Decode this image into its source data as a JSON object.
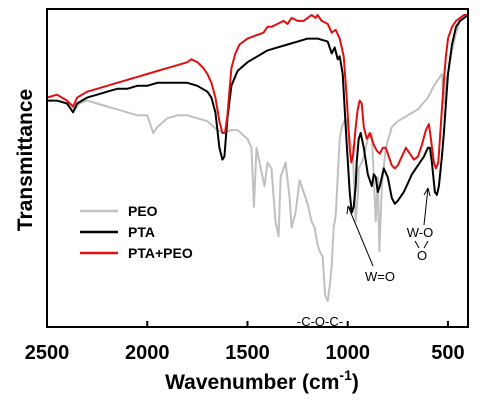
{
  "chart_data": {
    "type": "line",
    "xlabel": "Wavenumber (cm",
    "xlabel_sup": "-1",
    "xlabel_close": ")",
    "ylabel": "Transmittance",
    "xlim": [
      2500,
      400
    ],
    "x_reversed": true,
    "xticks": [
      2500,
      2000,
      1500,
      1000,
      500
    ],
    "xtick_labels": [
      "2500",
      "2000",
      "1500",
      "1000",
      "500"
    ],
    "ylim": [
      0,
      100
    ],
    "y_ticks_shown": false,
    "grid": false,
    "legend_position": "lower-left",
    "series": [
      {
        "name": "PEO",
        "color": "#c0c0c0",
        "points": [
          [
            2500,
            72
          ],
          [
            2450,
            73
          ],
          [
            2400,
            71
          ],
          [
            2360,
            68
          ],
          [
            2340,
            70
          ],
          [
            2300,
            71
          ],
          [
            2250,
            70
          ],
          [
            2200,
            69
          ],
          [
            2150,
            68
          ],
          [
            2100,
            67
          ],
          [
            2050,
            66
          ],
          [
            2000,
            66
          ],
          [
            1970,
            60
          ],
          [
            1950,
            62
          ],
          [
            1900,
            65
          ],
          [
            1850,
            66
          ],
          [
            1800,
            66
          ],
          [
            1750,
            65
          ],
          [
            1700,
            64
          ],
          [
            1650,
            61
          ],
          [
            1620,
            60
          ],
          [
            1580,
            61
          ],
          [
            1550,
            61
          ],
          [
            1500,
            58
          ],
          [
            1480,
            55
          ],
          [
            1468,
            35
          ],
          [
            1455,
            55
          ],
          [
            1440,
            50
          ],
          [
            1415,
            42
          ],
          [
            1400,
            50
          ],
          [
            1380,
            48
          ],
          [
            1360,
            30
          ],
          [
            1345,
            25
          ],
          [
            1335,
            45
          ],
          [
            1310,
            50
          ],
          [
            1290,
            38
          ],
          [
            1280,
            28
          ],
          [
            1260,
            33
          ],
          [
            1240,
            44
          ],
          [
            1220,
            40
          ],
          [
            1200,
            36
          ],
          [
            1180,
            30
          ],
          [
            1165,
            28
          ],
          [
            1150,
            22
          ],
          [
            1140,
            20
          ],
          [
            1125,
            18
          ],
          [
            1113,
            5
          ],
          [
            1100,
            3
          ],
          [
            1090,
            8
          ],
          [
            1080,
            15
          ],
          [
            1070,
            28
          ],
          [
            1060,
            32
          ],
          [
            1050,
            45
          ],
          [
            1040,
            58
          ],
          [
            1030,
            62
          ],
          [
            1010,
            65
          ],
          [
            990,
            58
          ],
          [
            975,
            54
          ],
          [
            960,
            30
          ],
          [
            948,
            40
          ],
          [
            945,
            48
          ],
          [
            930,
            50
          ],
          [
            920,
            52
          ],
          [
            900,
            58
          ],
          [
            880,
            60
          ],
          [
            860,
            30
          ],
          [
            850,
            45
          ],
          [
            842,
            20
          ],
          [
            830,
            42
          ],
          [
            810,
            55
          ],
          [
            780,
            62
          ],
          [
            750,
            64
          ],
          [
            700,
            66
          ],
          [
            650,
            68
          ],
          [
            600,
            72
          ],
          [
            570,
            76
          ],
          [
            550,
            78
          ],
          [
            530,
            80
          ],
          [
            520,
            70
          ],
          [
            512,
            78
          ],
          [
            500,
            80
          ],
          [
            480,
            88
          ],
          [
            460,
            94
          ],
          [
            440,
            98
          ],
          [
            420,
            99
          ],
          [
            400,
            100
          ]
        ]
      },
      {
        "name": "PTA",
        "color": "#000000",
        "points": [
          [
            2500,
            71
          ],
          [
            2450,
            71
          ],
          [
            2400,
            70
          ],
          [
            2370,
            67
          ],
          [
            2350,
            70
          ],
          [
            2300,
            72
          ],
          [
            2250,
            73
          ],
          [
            2200,
            74
          ],
          [
            2150,
            75
          ],
          [
            2100,
            75
          ],
          [
            2050,
            76
          ],
          [
            2000,
            76
          ],
          [
            1950,
            77
          ],
          [
            1900,
            77
          ],
          [
            1850,
            77
          ],
          [
            1800,
            77
          ],
          [
            1750,
            76
          ],
          [
            1700,
            74
          ],
          [
            1680,
            72
          ],
          [
            1660,
            67
          ],
          [
            1640,
            55
          ],
          [
            1625,
            51
          ],
          [
            1615,
            52
          ],
          [
            1600,
            65
          ],
          [
            1580,
            76
          ],
          [
            1550,
            81
          ],
          [
            1500,
            84
          ],
          [
            1450,
            86
          ],
          [
            1400,
            88
          ],
          [
            1350,
            89
          ],
          [
            1300,
            90
          ],
          [
            1250,
            91
          ],
          [
            1200,
            92
          ],
          [
            1150,
            92
          ],
          [
            1100,
            91
          ],
          [
            1080,
            87
          ],
          [
            1065,
            89
          ],
          [
            1050,
            85
          ],
          [
            1040,
            86
          ],
          [
            1025,
            80
          ],
          [
            1010,
            62
          ],
          [
            990,
            40
          ],
          [
            980,
            33
          ],
          [
            970,
            35
          ],
          [
            960,
            42
          ],
          [
            955,
            50
          ],
          [
            945,
            58
          ],
          [
            935,
            60
          ],
          [
            920,
            55
          ],
          [
            900,
            46
          ],
          [
            880,
            42
          ],
          [
            870,
            46
          ],
          [
            860,
            45
          ],
          [
            850,
            40
          ],
          [
            840,
            42
          ],
          [
            830,
            45
          ],
          [
            820,
            48
          ],
          [
            800,
            45
          ],
          [
            780,
            38
          ],
          [
            765,
            36
          ],
          [
            750,
            37
          ],
          [
            720,
            40
          ],
          [
            700,
            43
          ],
          [
            680,
            46
          ],
          [
            660,
            48
          ],
          [
            640,
            50
          ],
          [
            620,
            52
          ],
          [
            600,
            55
          ],
          [
            590,
            55
          ],
          [
            580,
            50
          ],
          [
            565,
            40
          ],
          [
            555,
            39
          ],
          [
            545,
            42
          ],
          [
            530,
            52
          ],
          [
            520,
            60
          ],
          [
            510,
            70
          ],
          [
            500,
            80
          ],
          [
            480,
            90
          ],
          [
            460,
            96
          ],
          [
            440,
            98
          ],
          [
            420,
            99
          ],
          [
            400,
            100
          ]
        ]
      },
      {
        "name": "PTA+PEO",
        "color": "#e01010",
        "points": [
          [
            2500,
            72
          ],
          [
            2450,
            73
          ],
          [
            2400,
            71
          ],
          [
            2370,
            69
          ],
          [
            2350,
            72
          ],
          [
            2300,
            74
          ],
          [
            2250,
            75
          ],
          [
            2200,
            76
          ],
          [
            2150,
            77
          ],
          [
            2100,
            78
          ],
          [
            2050,
            79
          ],
          [
            2000,
            80
          ],
          [
            1950,
            81
          ],
          [
            1900,
            82
          ],
          [
            1850,
            83
          ],
          [
            1800,
            84
          ],
          [
            1780,
            85
          ],
          [
            1750,
            84
          ],
          [
            1720,
            82
          ],
          [
            1700,
            80
          ],
          [
            1680,
            77
          ],
          [
            1660,
            72
          ],
          [
            1640,
            64
          ],
          [
            1625,
            60
          ],
          [
            1612,
            60
          ],
          [
            1600,
            66
          ],
          [
            1590,
            74
          ],
          [
            1580,
            82
          ],
          [
            1560,
            87
          ],
          [
            1540,
            90
          ],
          [
            1500,
            92
          ],
          [
            1460,
            93
          ],
          [
            1420,
            94
          ],
          [
            1400,
            96
          ],
          [
            1380,
            96
          ],
          [
            1350,
            97
          ],
          [
            1320,
            98
          ],
          [
            1300,
            97
          ],
          [
            1280,
            99
          ],
          [
            1250,
            98
          ],
          [
            1220,
            98
          ],
          [
            1200,
            99
          ],
          [
            1180,
            100
          ],
          [
            1160,
            99
          ],
          [
            1150,
            100
          ],
          [
            1130,
            98
          ],
          [
            1100,
            97
          ],
          [
            1080,
            94
          ],
          [
            1060,
            95
          ],
          [
            1040,
            92
          ],
          [
            1020,
            86
          ],
          [
            1005,
            72
          ],
          [
            990,
            55
          ],
          [
            982,
            50
          ],
          [
            972,
            53
          ],
          [
            960,
            62
          ],
          [
            950,
            68
          ],
          [
            940,
            71
          ],
          [
            930,
            70
          ],
          [
            920,
            62
          ],
          [
            905,
            58
          ],
          [
            890,
            60
          ],
          [
            870,
            56
          ],
          [
            855,
            54
          ],
          [
            840,
            53
          ],
          [
            825,
            55
          ],
          [
            810,
            55
          ],
          [
            795,
            52
          ],
          [
            780,
            49
          ],
          [
            765,
            48
          ],
          [
            750,
            49
          ],
          [
            730,
            52
          ],
          [
            710,
            55
          ],
          [
            690,
            53
          ],
          [
            670,
            51
          ],
          [
            650,
            52
          ],
          [
            630,
            56
          ],
          [
            610,
            61
          ],
          [
            595,
            63
          ],
          [
            585,
            58
          ],
          [
            570,
            50
          ],
          [
            560,
            48
          ],
          [
            548,
            50
          ],
          [
            540,
            58
          ],
          [
            530,
            68
          ],
          [
            520,
            78
          ],
          [
            510,
            86
          ],
          [
            500,
            92
          ],
          [
            480,
            96
          ],
          [
            460,
            98
          ],
          [
            440,
            99
          ],
          [
            420,
            100
          ],
          [
            400,
            100
          ]
        ]
      }
    ],
    "annotations": [
      {
        "text": "-C-O-C-",
        "x": 1110
      },
      {
        "text": "W=O",
        "x": 975
      },
      {
        "text": "W-O",
        "x": 548
      },
      {
        "text": "O",
        "x": 548
      }
    ]
  }
}
